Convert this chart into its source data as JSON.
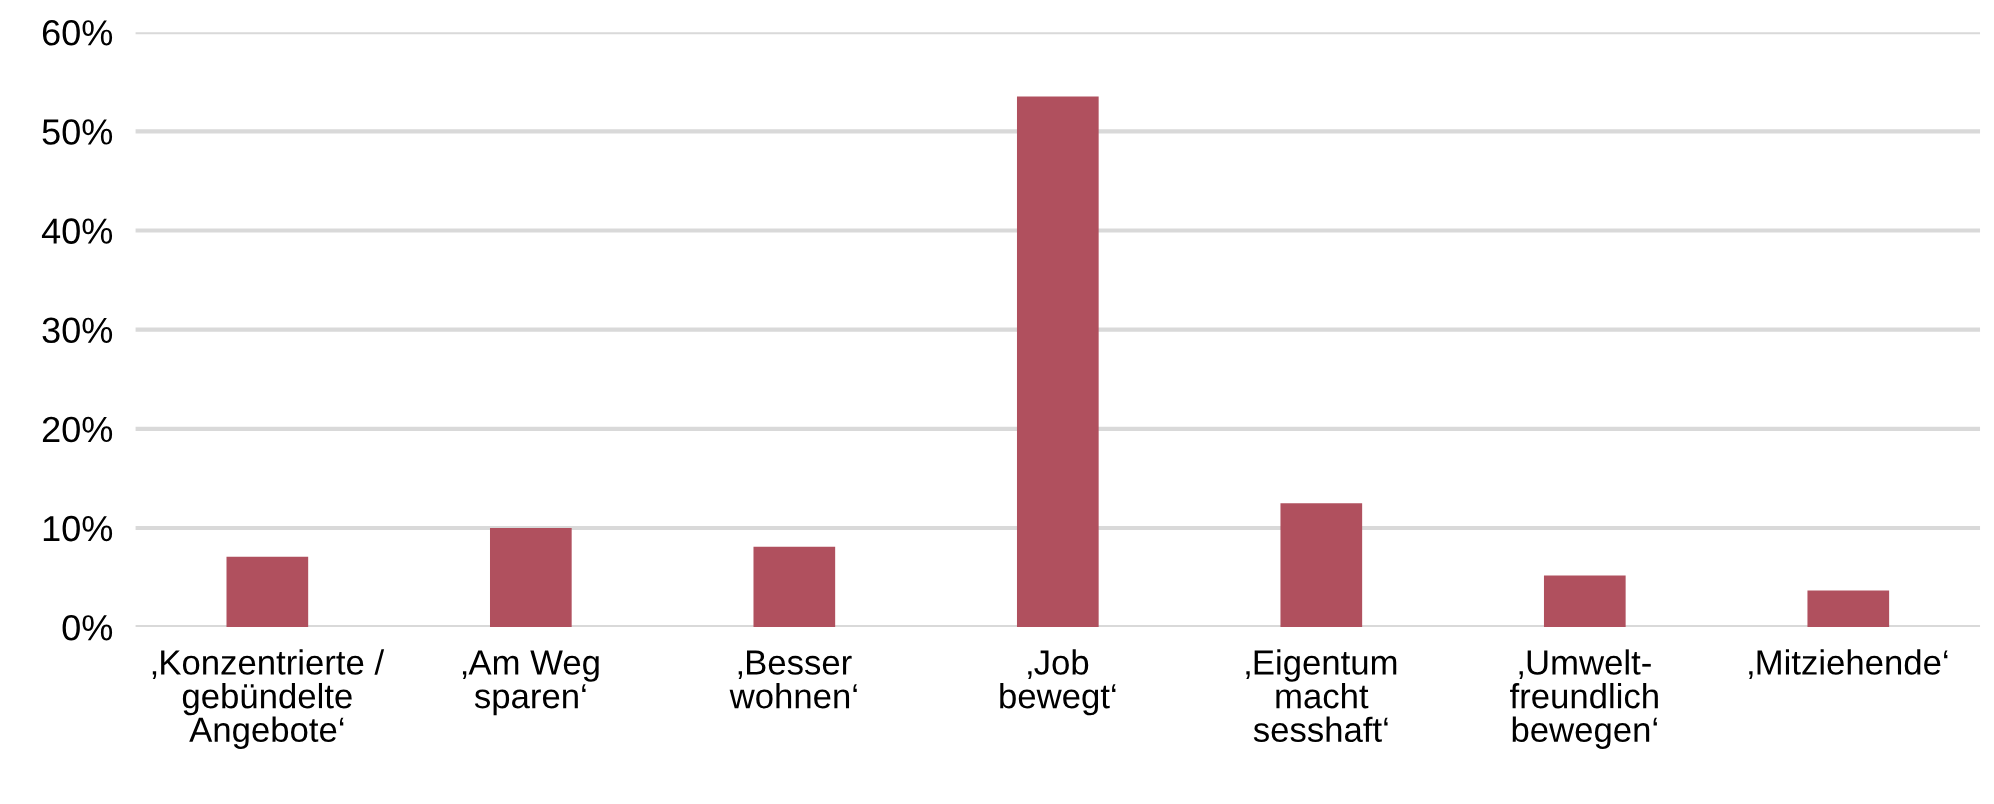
{
  "chart_data": {
    "type": "bar",
    "categories": [
      "‚Konzentrierte /\ngebündelte\nAngebote‘",
      "‚Am Weg\nsparen‘",
      "‚Besser\nwohnen‘",
      "‚Job\nbewegt‘",
      "‚Eigentum\nmacht\nsesshaft‘",
      "‚Umwelt-\nfreundlich\nbewegen‘",
      "‚Mitziehende‘"
    ],
    "values": [
      7.1,
      10,
      8.1,
      53.5,
      12.5,
      5.2,
      3.7
    ],
    "color": "#b0505e",
    "ylim": [
      0,
      60
    ],
    "yticks": [
      {
        "value": 0,
        "label": "0%"
      },
      {
        "value": 10,
        "label": "10%"
      },
      {
        "value": 20,
        "label": "20%"
      },
      {
        "value": 30,
        "label": "30%"
      },
      {
        "value": 40,
        "label": "40%"
      },
      {
        "value": 50,
        "label": "50%"
      },
      {
        "value": 60,
        "label": "60%"
      }
    ],
    "grid": "y"
  }
}
